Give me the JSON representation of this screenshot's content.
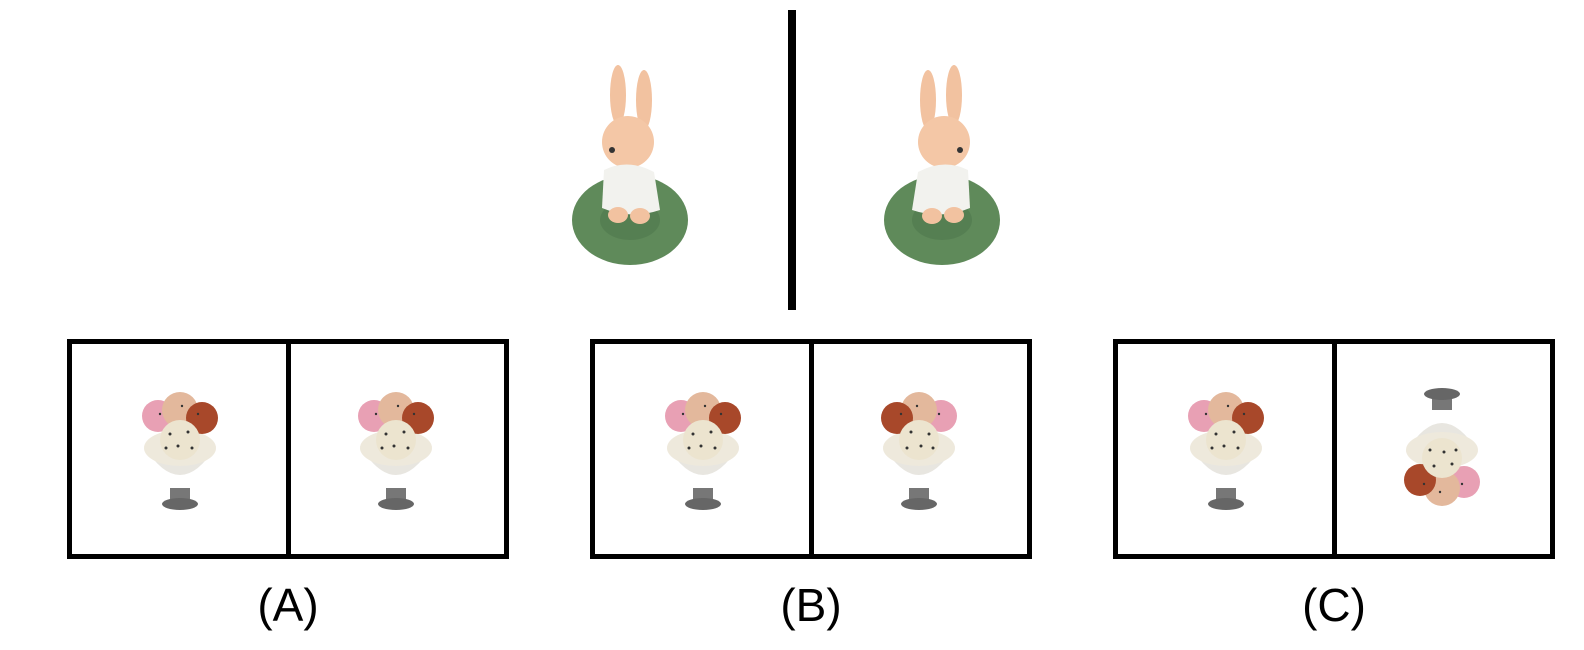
{
  "reference_images": [
    {
      "name": "bunny-figure",
      "pose": "facing-left"
    },
    {
      "name": "bunny-figure",
      "pose": "mirrored-facing-right"
    }
  ],
  "options": [
    {
      "label": "(A)",
      "left": "ice-cream-cup",
      "right": "ice-cream-cup"
    },
    {
      "label": "(B)",
      "left": "ice-cream-cup",
      "right": "ice-cream-cup-mirrored"
    },
    {
      "label": "(C)",
      "left": "ice-cream-cup",
      "right": "ice-cream-cup-rotated-180"
    }
  ],
  "colors": {
    "border": "#000000",
    "bunny_skin": "#f2c2a0",
    "base_green": "#5f8a5a",
    "dress": "#f2f2ee",
    "cup": "#e8e6e0",
    "stem": "#777777"
  }
}
